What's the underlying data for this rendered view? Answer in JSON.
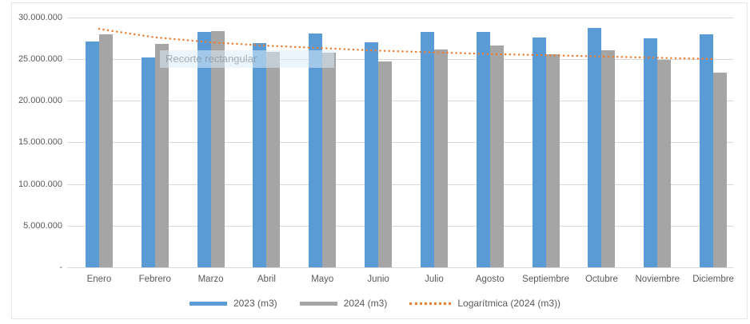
{
  "overlay": {
    "snip_tooltip_text": "Recorte rectangular"
  },
  "chart_data": {
    "type": "bar",
    "title": "",
    "xlabel": "",
    "ylabel": "",
    "grid": true,
    "legend_position": "bottom",
    "categories": [
      "Enero",
      "Febrero",
      "Marzo",
      "Abril",
      "Mayo",
      "Junio",
      "Julio",
      "Agosto",
      "Septiembre",
      "Octubre",
      "Noviembre",
      "Diciembre"
    ],
    "series": [
      {
        "name": "2023 (m3)",
        "color": "#5B9BD5",
        "values": [
          27100000,
          25200000,
          28200000,
          26900000,
          28100000,
          27000000,
          28200000,
          28200000,
          27600000,
          28700000,
          27500000,
          28000000
        ]
      },
      {
        "name": "2024 (m3)",
        "color": "#A5A5A5",
        "values": [
          28000000,
          26800000,
          28300000,
          25900000,
          25800000,
          24700000,
          26100000,
          26600000,
          25600000,
          26000000,
          24900000,
          23400000
        ]
      }
    ],
    "trendline": {
      "name": "Logarítmica (2024 (m3))",
      "color": "#ED7D31",
      "style": "dotted",
      "values": [
        28600000,
        27600000,
        27000000,
        26600000,
        26300000,
        26000000,
        25800000,
        25600000,
        25450000,
        25300000,
        25150000,
        25000000
      ]
    },
    "y_axis": {
      "min": 0,
      "max": 30000000,
      "tick_interval": 5000000,
      "tick_values": [
        30000000,
        25000000,
        20000000,
        15000000,
        10000000,
        5000000,
        0
      ],
      "tick_labels": [
        "30.000.000",
        "25.000.000",
        "20.000.000",
        "15.000.000",
        "10.000.000",
        "5.000.000",
        "-"
      ]
    }
  },
  "colors": {
    "background": "#FFFFFF",
    "gridline": "#D9D9D9",
    "axis_text": "#595959",
    "chart_border": "#E6E6E6",
    "series_2023": "#5B9BD5",
    "series_2024": "#A5A5A5",
    "trendline": "#ED7D31"
  }
}
